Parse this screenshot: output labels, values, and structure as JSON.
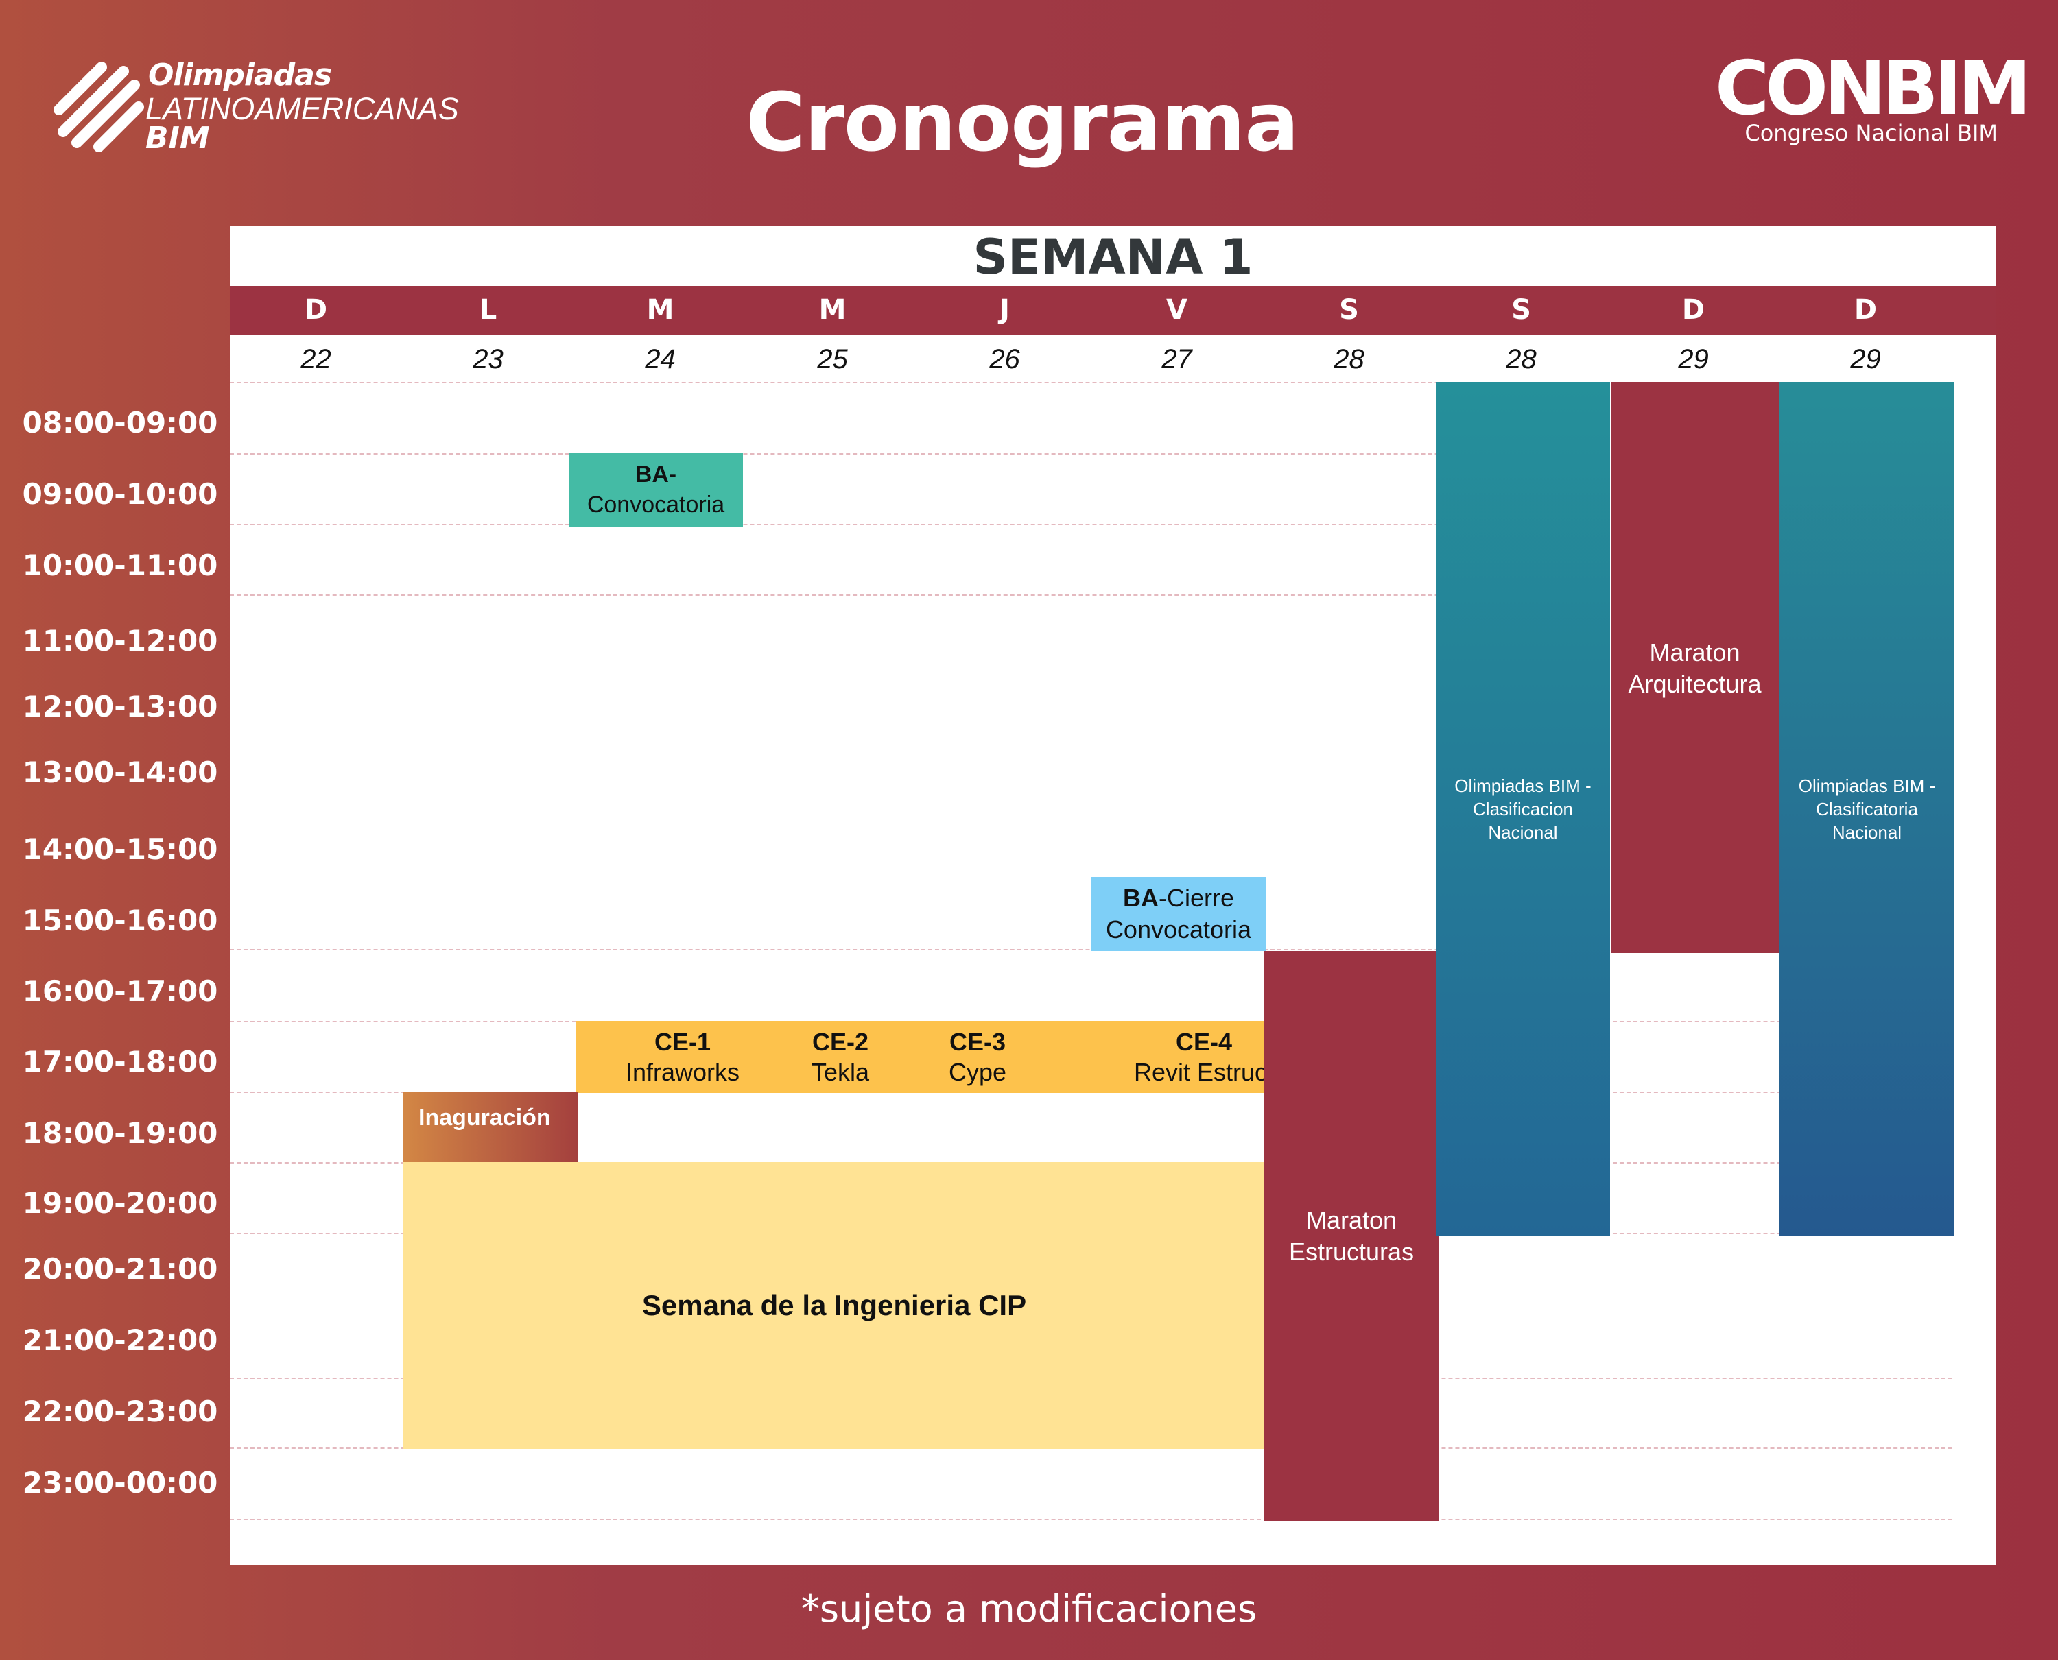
{
  "logo_left": {
    "line1": "Olimpiadas",
    "line2": "LATINOAMERICANAS",
    "line3": "BIM"
  },
  "title": "Cronograma",
  "logo_right": {
    "name": "CONBIM",
    "subtitle": "Congreso Nacional BIM"
  },
  "week_title": "SEMANA 1",
  "days": [
    {
      "letter": "D",
      "num": "22"
    },
    {
      "letter": "L",
      "num": "23"
    },
    {
      "letter": "M",
      "num": "24"
    },
    {
      "letter": "M",
      "num": "25"
    },
    {
      "letter": "J",
      "num": "26"
    },
    {
      "letter": "V",
      "num": "27"
    },
    {
      "letter": "S",
      "num": "28"
    },
    {
      "letter": "S",
      "num": "28"
    },
    {
      "letter": "D",
      "num": "29"
    },
    {
      "letter": "D",
      "num": "29"
    }
  ],
  "times": [
    "08:00-09:00",
    "09:00-10:00",
    "10:00-11:00",
    "11:00-12:00",
    "12:00-13:00",
    "13:00-14:00",
    "14:00-15:00",
    "15:00-16:00",
    "16:00-17:00",
    "17:00-18:00",
    "18:00-19:00",
    "19:00-20:00",
    "20:00-21:00",
    "21:00-22:00",
    "22:00-23:00",
    "23:00-00:00"
  ],
  "events": {
    "ba_convocatoria": {
      "code": "BA",
      "text": "-\nConvocatoria",
      "color": "#44bba5"
    },
    "ba_cierre": {
      "code": "BA",
      "text": "-Cierre\nConvocatoria",
      "color": "#7ecff7"
    },
    "ce1": {
      "code": "CE-1",
      "text": "Infraworks",
      "color": "#fdc24c"
    },
    "ce2": {
      "code": "CE-2",
      "text": "Tekla",
      "color": "#fdc24c"
    },
    "ce3": {
      "code": "CE-3",
      "text": "Cype",
      "color": "#fdc24c"
    },
    "ce4": {
      "code": "CE-4",
      "text": "Revit Estruc.",
      "color": "#fdc24c"
    },
    "inauguracion": {
      "text": "Inaguración",
      "color": "#c56b3c"
    },
    "semana_ingenieria": {
      "text": "Semana de la Ingenieria CIP",
      "color": "#ffe394"
    },
    "maraton_estructuras": {
      "text": "Maraton\nEstructuras",
      "color": "#9c3342"
    },
    "olimpiadas_sab": {
      "text": "Olimpiadas BIM -\nClasificacion\nNacional",
      "color": "#24858f"
    },
    "maraton_arquitectura": {
      "text": "Maraton\nArquitectura",
      "color": "#9c3342"
    },
    "olimpiadas_dom": {
      "text": "Olimpiadas BIM -\nClasificatoria\nNacional",
      "color": "#277f95"
    }
  },
  "footer": "*sujeto a modificaciones"
}
